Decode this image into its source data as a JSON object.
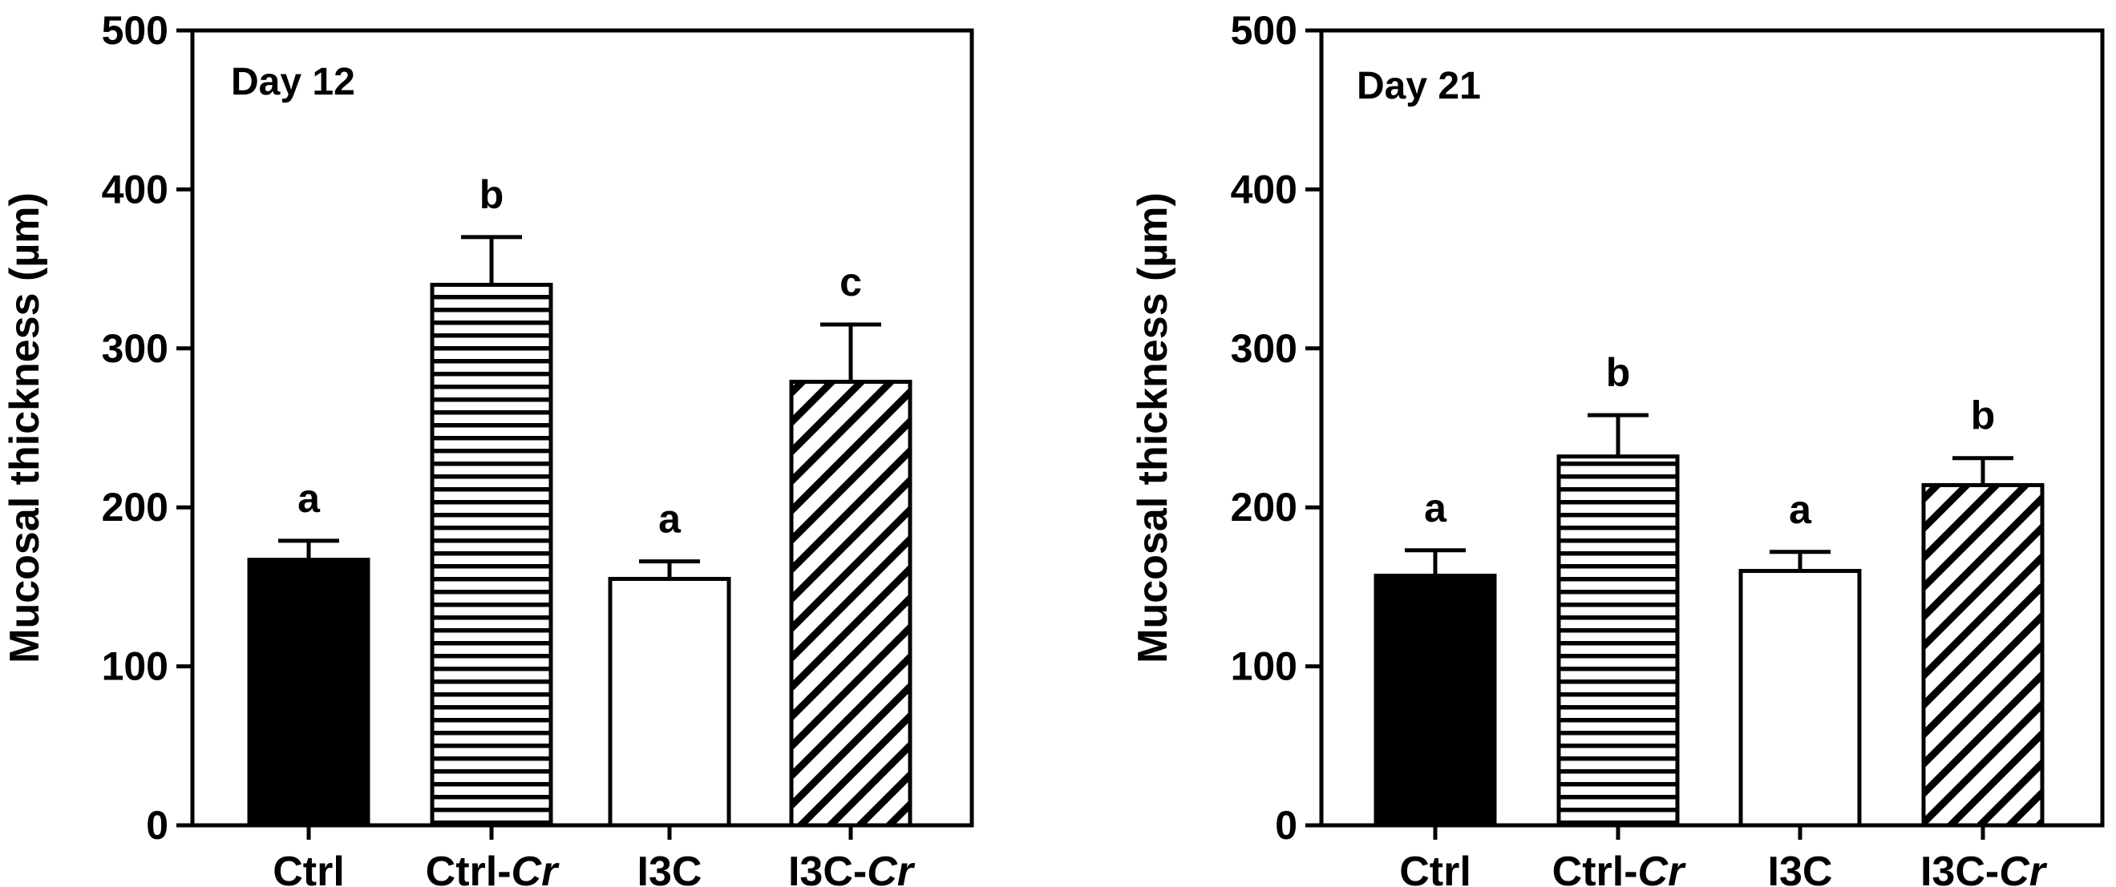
{
  "chart_data": [
    {
      "type": "bar",
      "title": "Day 12",
      "xlabel": "",
      "ylabel": "Mucosal thickness (µm)",
      "ylim": [
        0,
        500
      ],
      "yticks": [
        "0",
        "100",
        "200",
        "300",
        "400",
        "500"
      ],
      "categories": [
        {
          "main": "Ctrl",
          "suffix": ""
        },
        {
          "main": "Ctrl-",
          "suffix": "Cr"
        },
        {
          "main": "I3C",
          "suffix": ""
        },
        {
          "main": "I3C-",
          "suffix": "Cr"
        }
      ],
      "values": [
        167,
        340,
        155,
        279
      ],
      "errors": [
        12,
        30,
        11,
        36
      ],
      "letters": [
        "a",
        "b",
        "a",
        "c"
      ],
      "patterns": [
        "solid",
        "horizontal",
        "open",
        "diagonal"
      ]
    },
    {
      "type": "bar",
      "title": "Day 21",
      "xlabel": "",
      "ylabel": "Mucosal thickness (µm)",
      "ylim": [
        0,
        500
      ],
      "yticks": [
        "0",
        "100",
        "200",
        "300",
        "400",
        "500"
      ],
      "categories": [
        {
          "main": "Ctrl",
          "suffix": ""
        },
        {
          "main": "Ctrl-",
          "suffix": "Cr"
        },
        {
          "main": "I3C",
          "suffix": ""
        },
        {
          "main": "I3C-",
          "suffix": "Cr"
        }
      ],
      "values": [
        157,
        232,
        160,
        214
      ],
      "errors": [
        16,
        26,
        12,
        17
      ],
      "letters": [
        "a",
        "b",
        "a",
        "b"
      ],
      "patterns": [
        "solid",
        "horizontal",
        "open",
        "diagonal"
      ]
    }
  ],
  "colors": {
    "ink": "#000000",
    "paper": "#ffffff"
  }
}
